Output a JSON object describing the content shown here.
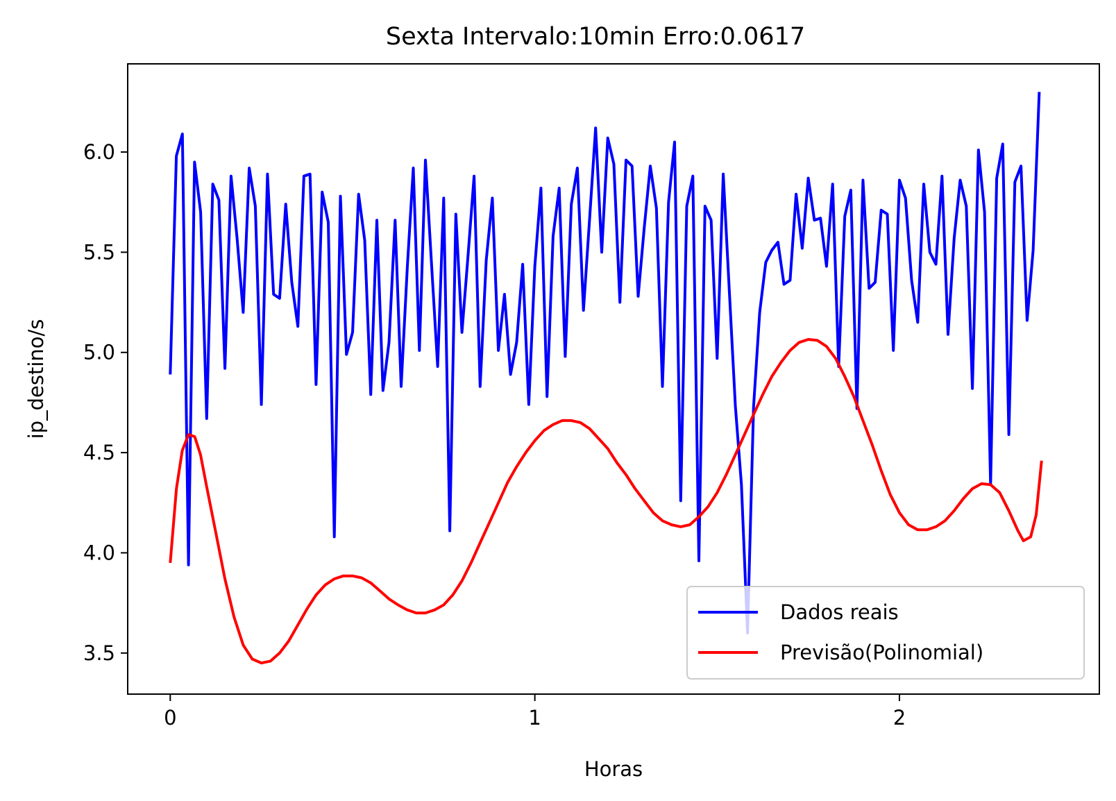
{
  "chart_data": {
    "type": "line",
    "title": "Sexta Intervalo:10min Erro:0.0617",
    "xlabel": "Horas",
    "ylabel": "ip_destino/s",
    "xlim": [
      -0.1167,
      2.5483
    ],
    "ylim": [
      3.295,
      6.44
    ],
    "xticks": [
      0,
      1,
      2
    ],
    "xtick_labels": [
      "0",
      "1",
      "2"
    ],
    "yticks": [
      3.5,
      4.0,
      4.5,
      5.0,
      5.5,
      6.0
    ],
    "ytick_labels": [
      "3.5",
      "4.0",
      "4.5",
      "5.0",
      "5.5",
      "6.0"
    ],
    "grid": false,
    "legend": {
      "position": "lower-right",
      "entries": [
        "Dados reais",
        "Previsão(Polinomial)"
      ]
    },
    "x_step": 0.016667,
    "series": [
      {
        "name": "Dados reais",
        "color": "#0000ff",
        "values": [
          4.89,
          5.98,
          6.09,
          3.94,
          5.95,
          5.7,
          4.67,
          5.84,
          5.76,
          4.92,
          5.88,
          5.57,
          5.2,
          5.92,
          5.73,
          4.74,
          5.89,
          5.29,
          5.27,
          5.74,
          5.35,
          5.13,
          5.88,
          5.89,
          4.84,
          5.8,
          5.65,
          4.08,
          5.78,
          4.99,
          5.1,
          5.79,
          5.56,
          4.79,
          5.66,
          4.81,
          5.05,
          5.66,
          4.83,
          5.42,
          5.92,
          5.01,
          5.96,
          5.44,
          4.93,
          5.77,
          4.11,
          5.69,
          5.1,
          5.48,
          5.88,
          4.83,
          5.46,
          5.77,
          5.01,
          5.29,
          4.89,
          5.05,
          5.44,
          4.74,
          5.43,
          5.82,
          4.78,
          5.58,
          5.82,
          4.98,
          5.74,
          5.92,
          5.21,
          5.66,
          6.12,
          5.5,
          6.07,
          5.94,
          5.25,
          5.96,
          5.93,
          5.28,
          5.62,
          5.93,
          5.72,
          4.83,
          5.75,
          6.05,
          4.26,
          5.73,
          5.88,
          3.96,
          5.73,
          5.66,
          4.97,
          5.89,
          5.31,
          4.73,
          4.34,
          3.6,
          4.73,
          5.2,
          5.45,
          5.51,
          5.55,
          5.34,
          5.36,
          5.79,
          5.52,
          5.87,
          5.66,
          5.67,
          5.43,
          5.84,
          4.93,
          5.68,
          5.81,
          4.72,
          5.86,
          5.32,
          5.35,
          5.71,
          5.69,
          5.01,
          5.86,
          5.77,
          5.36,
          5.15,
          5.84,
          5.5,
          5.44,
          5.88,
          5.09,
          5.57,
          5.86,
          5.73,
          4.82,
          6.01,
          5.7,
          4.34,
          5.87,
          6.04,
          4.59,
          5.85,
          5.93,
          5.16,
          5.51,
          6.3
        ]
      },
      {
        "name": "Previsão(Polinomial)",
        "color": "#ff0000",
        "points": [
          [
            0,
            3.95
          ],
          [
            0.017,
            4.32
          ],
          [
            0.033,
            4.51
          ],
          [
            0.05,
            4.59
          ],
          [
            0.067,
            4.58
          ],
          [
            0.083,
            4.49
          ],
          [
            0.1,
            4.33
          ],
          [
            0.125,
            4.1
          ],
          [
            0.15,
            3.87
          ],
          [
            0.175,
            3.68
          ],
          [
            0.2,
            3.54
          ],
          [
            0.225,
            3.47
          ],
          [
            0.25,
            3.45
          ],
          [
            0.275,
            3.46
          ],
          [
            0.3,
            3.5
          ],
          [
            0.325,
            3.56
          ],
          [
            0.35,
            3.64
          ],
          [
            0.375,
            3.72
          ],
          [
            0.4,
            3.79
          ],
          [
            0.425,
            3.84
          ],
          [
            0.45,
            3.87
          ],
          [
            0.475,
            3.885
          ],
          [
            0.5,
            3.885
          ],
          [
            0.525,
            3.875
          ],
          [
            0.55,
            3.85
          ],
          [
            0.575,
            3.81
          ],
          [
            0.6,
            3.77
          ],
          [
            0.625,
            3.74
          ],
          [
            0.65,
            3.715
          ],
          [
            0.675,
            3.7
          ],
          [
            0.7,
            3.7
          ],
          [
            0.725,
            3.715
          ],
          [
            0.75,
            3.74
          ],
          [
            0.775,
            3.79
          ],
          [
            0.8,
            3.86
          ],
          [
            0.825,
            3.95
          ],
          [
            0.85,
            4.05
          ],
          [
            0.875,
            4.15
          ],
          [
            0.9,
            4.25
          ],
          [
            0.925,
            4.35
          ],
          [
            0.95,
            4.43
          ],
          [
            0.975,
            4.5
          ],
          [
            1.0,
            4.56
          ],
          [
            1.025,
            4.61
          ],
          [
            1.05,
            4.64
          ],
          [
            1.075,
            4.66
          ],
          [
            1.1,
            4.66
          ],
          [
            1.125,
            4.65
          ],
          [
            1.15,
            4.62
          ],
          [
            1.175,
            4.57
          ],
          [
            1.2,
            4.52
          ],
          [
            1.225,
            4.45
          ],
          [
            1.25,
            4.39
          ],
          [
            1.275,
            4.32
          ],
          [
            1.3,
            4.26
          ],
          [
            1.325,
            4.2
          ],
          [
            1.35,
            4.16
          ],
          [
            1.375,
            4.14
          ],
          [
            1.4,
            4.13
          ],
          [
            1.425,
            4.14
          ],
          [
            1.45,
            4.18
          ],
          [
            1.475,
            4.23
          ],
          [
            1.5,
            4.3
          ],
          [
            1.525,
            4.39
          ],
          [
            1.55,
            4.49
          ],
          [
            1.575,
            4.59
          ],
          [
            1.6,
            4.69
          ],
          [
            1.625,
            4.79
          ],
          [
            1.65,
            4.88
          ],
          [
            1.675,
            4.95
          ],
          [
            1.7,
            5.01
          ],
          [
            1.725,
            5.05
          ],
          [
            1.75,
            5.065
          ],
          [
            1.775,
            5.06
          ],
          [
            1.8,
            5.03
          ],
          [
            1.825,
            4.97
          ],
          [
            1.85,
            4.88
          ],
          [
            1.875,
            4.78
          ],
          [
            1.9,
            4.66
          ],
          [
            1.925,
            4.54
          ],
          [
            1.95,
            4.41
          ],
          [
            1.975,
            4.29
          ],
          [
            2.0,
            4.2
          ],
          [
            2.025,
            4.14
          ],
          [
            2.05,
            4.115
          ],
          [
            2.075,
            4.115
          ],
          [
            2.1,
            4.13
          ],
          [
            2.125,
            4.16
          ],
          [
            2.15,
            4.21
          ],
          [
            2.175,
            4.27
          ],
          [
            2.2,
            4.32
          ],
          [
            2.225,
            4.345
          ],
          [
            2.25,
            4.34
          ],
          [
            2.275,
            4.3
          ],
          [
            2.3,
            4.21
          ],
          [
            2.325,
            4.11
          ],
          [
            2.34,
            4.06
          ],
          [
            2.36,
            4.08
          ],
          [
            2.375,
            4.19
          ],
          [
            2.39,
            4.46
          ]
        ]
      }
    ]
  }
}
